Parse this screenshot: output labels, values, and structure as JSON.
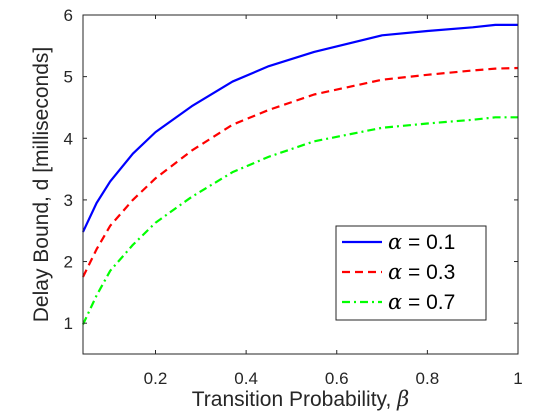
{
  "chart_data": {
    "type": "line",
    "xlabel": "Transition Probability, ",
    "xlabel_symbol": "β",
    "ylabel": "Delay Bound, d [milliseconds]",
    "xlim": [
      0.04,
      1.0
    ],
    "ylim": [
      0.5,
      6.0
    ],
    "xticks": [
      0.2,
      0.4,
      0.6,
      0.8,
      1.0
    ],
    "xtick_labels": [
      "0.2",
      "0.4",
      "0.6",
      "0.8",
      "1"
    ],
    "yticks": [
      1,
      2,
      3,
      4,
      5,
      6
    ],
    "ytick_labels": [
      "1",
      "2",
      "3",
      "4",
      "5",
      "6"
    ],
    "grid": false,
    "legend_position": "lower-right",
    "series": [
      {
        "name": "α = 0.1",
        "legend_symbol": "α",
        "legend_value": " = 0.1",
        "color": "#0000ff",
        "dash": "solid",
        "x": [
          0.04,
          0.07,
          0.1,
          0.15,
          0.2,
          0.28,
          0.37,
          0.45,
          0.55,
          0.7,
          0.8,
          0.9,
          0.95,
          1.0
        ],
        "y": [
          2.48,
          2.95,
          3.3,
          3.75,
          4.1,
          4.52,
          4.92,
          5.17,
          5.4,
          5.67,
          5.74,
          5.8,
          5.84,
          5.84
        ]
      },
      {
        "name": "α = 0.3",
        "legend_symbol": "α",
        "legend_value": " = 0.3",
        "color": "#ff0000",
        "dash": "dashed",
        "x": [
          0.04,
          0.07,
          0.1,
          0.15,
          0.2,
          0.28,
          0.37,
          0.45,
          0.55,
          0.7,
          0.8,
          0.9,
          0.95,
          1.0
        ],
        "y": [
          1.75,
          2.2,
          2.58,
          3.0,
          3.35,
          3.8,
          4.22,
          4.46,
          4.71,
          4.95,
          5.03,
          5.1,
          5.13,
          5.14
        ]
      },
      {
        "name": "α = 0.7",
        "legend_symbol": "α",
        "legend_value": " = 0.7",
        "color": "#00ff00",
        "dash": "dashdot",
        "x": [
          0.04,
          0.07,
          0.1,
          0.15,
          0.2,
          0.28,
          0.37,
          0.45,
          0.55,
          0.7,
          0.8,
          0.9,
          0.95,
          1.0
        ],
        "y": [
          0.98,
          1.45,
          1.85,
          2.27,
          2.63,
          3.05,
          3.45,
          3.7,
          3.95,
          4.17,
          4.24,
          4.3,
          4.34,
          4.34
        ]
      }
    ]
  }
}
